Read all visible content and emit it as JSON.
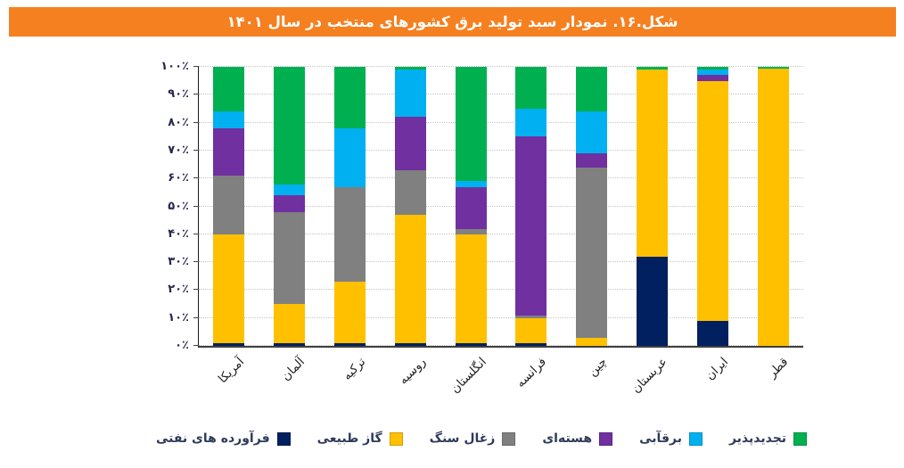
{
  "chart_data": {
    "type": "bar",
    "stacked": true,
    "orientation": "vertical",
    "unit": "percent",
    "title": "شکل.۱۶. نمودار سبد تولید برق کشورهای منتخب در سال ۱۴۰۱",
    "title_bg_color": "#F58020",
    "title_text_color": "#FFFFFF",
    "categories": [
      "آمریکا",
      "آلمان",
      "ترکیه",
      "روسیه",
      "انگلستان",
      "فرانسه",
      "چین",
      "عربستان",
      "ایران",
      "قطر"
    ],
    "series": [
      {
        "name": "فرآورده های نفتی",
        "color": "#002060",
        "values": [
          1,
          1,
          1,
          1,
          1,
          1,
          0,
          32,
          9,
          0
        ]
      },
      {
        "name": "گاز طبیعی",
        "color": "#FFC000",
        "values": [
          39,
          14,
          22,
          46,
          39,
          9,
          3,
          67,
          86,
          99.5
        ]
      },
      {
        "name": "زغال سنگ",
        "color": "#808080",
        "values": [
          21,
          33,
          34,
          16,
          2,
          1,
          61,
          0,
          0,
          0
        ]
      },
      {
        "name": "هسته‌ای",
        "color": "#7030A0",
        "values": [
          17,
          6,
          0,
          19,
          15,
          64,
          5,
          0,
          2,
          0
        ]
      },
      {
        "name": "برقآبی",
        "color": "#00B0F0",
        "values": [
          6,
          4,
          21,
          17,
          2,
          10,
          15,
          0,
          2,
          0
        ]
      },
      {
        "name": "تجدیدپذیر",
        "color": "#00B050",
        "values": [
          16,
          42,
          22,
          1,
          41,
          15,
          16,
          1,
          1,
          0.5
        ]
      }
    ],
    "ylim": [
      0,
      100
    ],
    "yticks": [
      "۰٪",
      "۱۰٪",
      "۲۰٪",
      "۳۰٪",
      "۴۰٪",
      "۵۰٪",
      "۶۰٪",
      "۷۰٪",
      "۸۰٪",
      "۹۰٪",
      "۱۰۰٪"
    ],
    "grid": true,
    "legend_position": "bottom",
    "legend_order_rtl": [
      "تجدیدپذیر",
      "برقآبی",
      "هسته‌ای",
      "زغال سنگ",
      "گاز طبیعی",
      "فرآورده های نفتی"
    ]
  }
}
